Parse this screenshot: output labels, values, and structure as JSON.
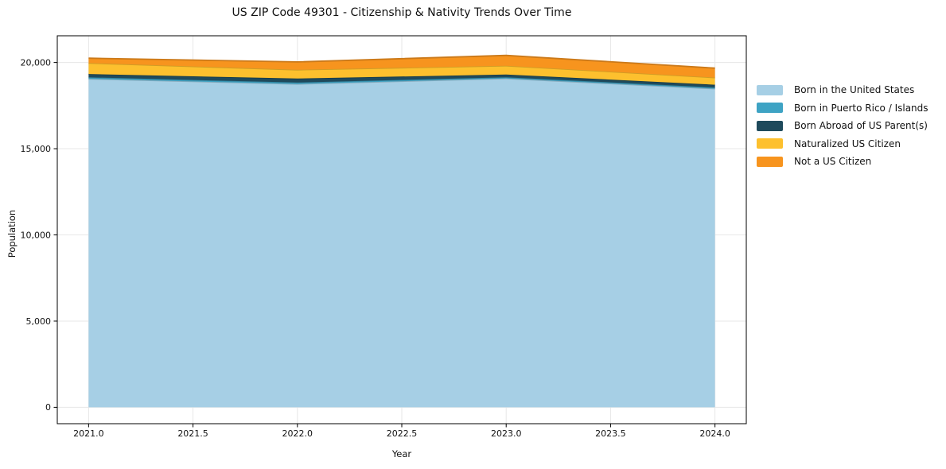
{
  "chart_data": {
    "type": "area",
    "stacked": true,
    "title": "US ZIP Code 49301 - Citizenship & Nativity Trends Over Time",
    "xlabel": "Year",
    "ylabel": "Population",
    "x": [
      2021,
      2022,
      2023,
      2024
    ],
    "series": [
      {
        "name": "Born in the United States",
        "color": "#a6cfe5",
        "values": [
          19050,
          18750,
          19075,
          18480
        ]
      },
      {
        "name": "Born in Puerto Rico / Islands",
        "color": "#3ea3c4",
        "values": [
          90,
          90,
          70,
          70
        ]
      },
      {
        "name": "Born Abroad of US Parent(s)",
        "color": "#1f4a5c",
        "values": [
          190,
          230,
          160,
          160
        ]
      },
      {
        "name": "Naturalized US Citizen",
        "color": "#fdc02e",
        "values": [
          640,
          505,
          505,
          415
        ]
      },
      {
        "name": "Not a US Citizen",
        "color": "#f7941e",
        "values": [
          280,
          460,
          600,
          550
        ]
      }
    ],
    "totals": [
      20250,
      20035,
      20410,
      19675
    ],
    "xlim": [
      2020.85,
      2024.15
    ],
    "ylim": [
      -950,
      21550
    ],
    "xticks": [
      {
        "value": 2021.0,
        "label": "2021.0"
      },
      {
        "value": 2021.5,
        "label": "2021.5"
      },
      {
        "value": 2022.0,
        "label": "2022.0"
      },
      {
        "value": 2022.5,
        "label": "2022.5"
      },
      {
        "value": 2023.0,
        "label": "2023.0"
      },
      {
        "value": 2023.5,
        "label": "2023.5"
      },
      {
        "value": 2024.0,
        "label": "2024.0"
      }
    ],
    "yticks": [
      {
        "value": 0,
        "label": "0"
      },
      {
        "value": 5000,
        "label": "5,000"
      },
      {
        "value": 10000,
        "label": "10,000"
      },
      {
        "value": 15000,
        "label": "15,000"
      },
      {
        "value": 20000,
        "label": "20,000"
      }
    ],
    "grid": true,
    "grid_color": "#e7e7e7",
    "spine_color": "#000000",
    "legend_position": "right-outside"
  }
}
